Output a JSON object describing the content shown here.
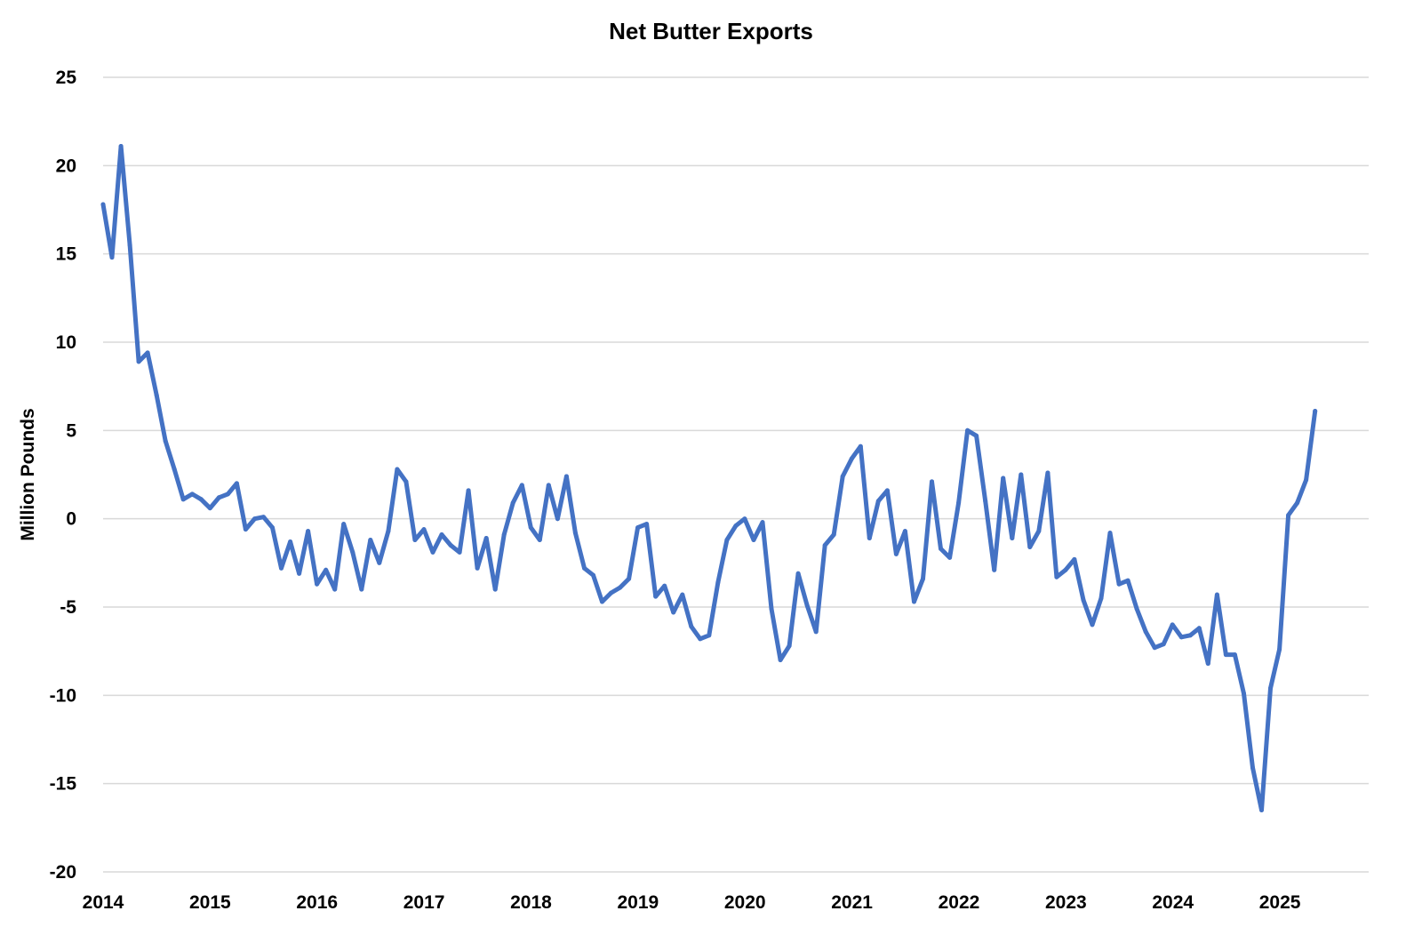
{
  "chart_data": {
    "type": "line",
    "title": "Net Butter Exports",
    "xlabel": "",
    "ylabel": "Million Pounds",
    "ylim": [
      -20,
      25
    ],
    "y_ticks": [
      "-20",
      "-15",
      "-10",
      "-5",
      "0",
      "5",
      "10",
      "15",
      "20",
      "25"
    ],
    "x_range": [
      2014,
      2025.83
    ],
    "x_ticks": [
      "2014",
      "2015",
      "2016",
      "2017",
      "2018",
      "2019",
      "2020",
      "2021",
      "2022",
      "2023",
      "2024",
      "2025"
    ],
    "grid": true,
    "series": [
      {
        "name": "Net Butter Exports",
        "color": "#4472C4",
        "x_start": 2014.0,
        "x_step": 0.0833,
        "values": [
          17.8,
          14.8,
          21.1,
          15.5,
          8.9,
          9.4,
          7.0,
          4.4,
          2.8,
          1.1,
          1.4,
          1.1,
          0.6,
          1.2,
          1.4,
          2.0,
          -0.6,
          0.0,
          0.1,
          -0.5,
          -2.8,
          -1.3,
          -3.1,
          -0.7,
          -3.7,
          -2.9,
          -4.0,
          -0.3,
          -1.9,
          -4.0,
          -1.2,
          -2.5,
          -0.7,
          2.8,
          2.1,
          -1.2,
          -0.6,
          -1.9,
          -0.9,
          -1.5,
          -1.9,
          1.6,
          -2.8,
          -1.1,
          -4.0,
          -0.9,
          0.9,
          1.9,
          -0.5,
          -1.2,
          1.9,
          0.0,
          2.4,
          -0.8,
          -2.8,
          -3.2,
          -4.7,
          -4.2,
          -3.9,
          -3.4,
          -0.5,
          -0.3,
          -4.4,
          -3.8,
          -5.3,
          -4.3,
          -6.1,
          -6.8,
          -6.6,
          -3.6,
          -1.2,
          -0.4,
          0.0,
          -1.2,
          -0.2,
          -5.1,
          -8.0,
          -7.2,
          -3.1,
          -4.9,
          -6.4,
          -1.5,
          -0.9,
          2.4,
          3.4,
          4.1,
          -1.1,
          1.0,
          1.6,
          -2.0,
          -0.7,
          -4.7,
          -3.4,
          2.1,
          -1.7,
          -2.2,
          0.9,
          5.0,
          4.7,
          1.0,
          -2.9,
          2.3,
          -1.1,
          2.5,
          -1.6,
          -0.7,
          2.6,
          -3.3,
          -2.9,
          -2.3,
          -4.6,
          -6.0,
          -4.5,
          -0.8,
          -3.7,
          -3.5,
          -5.1,
          -6.4,
          -7.3,
          -7.1,
          -6.0,
          -6.7,
          -6.6,
          -6.2,
          -8.2,
          -4.3,
          -7.7,
          -7.7,
          -9.9,
          -14.1,
          -16.5,
          -9.6,
          -7.4,
          0.2,
          0.9,
          2.2,
          6.1
        ]
      }
    ]
  }
}
